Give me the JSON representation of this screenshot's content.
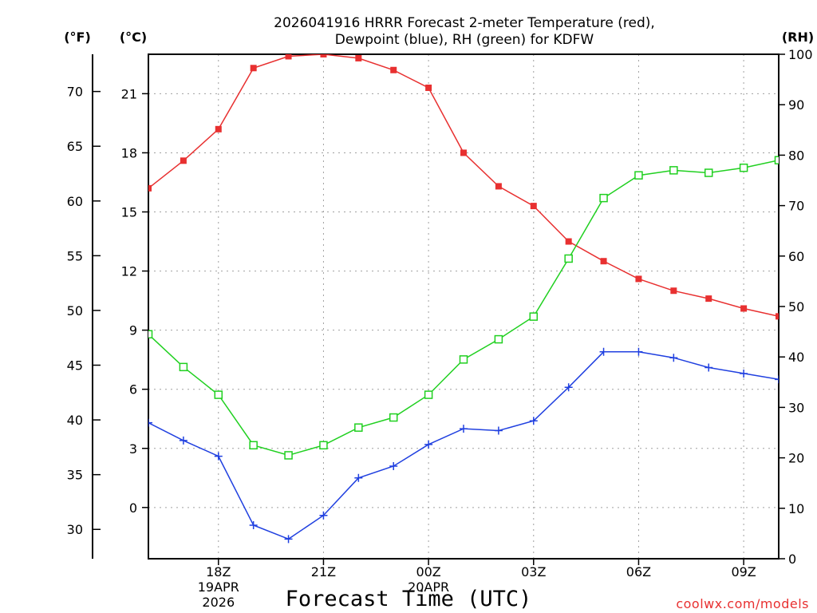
{
  "chart_data": {
    "type": "line",
    "title_line1": "2026041916 HRRR Forecast 2-meter Temperature (red),",
    "title_line2": "Dewpoint (blue), RH (green) for KDFW",
    "xlabel": "Forecast Time (UTC)",
    "credit": "coolwx.com/models",
    "units": {
      "fahrenheit": "(°F)",
      "celsius": "(°C)",
      "rh": "(RH)"
    },
    "x_hours": [
      16,
      17,
      18,
      19,
      20,
      21,
      22,
      23,
      24,
      25,
      26,
      27,
      28,
      29,
      30,
      31,
      32,
      33,
      34
    ],
    "xlim": [
      16,
      34
    ],
    "x_ticks": [
      {
        "hour": 18,
        "label": "18Z",
        "sub1": "19APR",
        "sub2": "2026"
      },
      {
        "hour": 21,
        "label": "21Z",
        "sub1": "",
        "sub2": ""
      },
      {
        "hour": 24,
        "label": "00Z",
        "sub1": "20APR",
        "sub2": ""
      },
      {
        "hour": 27,
        "label": "03Z",
        "sub1": "",
        "sub2": ""
      },
      {
        "hour": 30,
        "label": "06Z",
        "sub1": "",
        "sub2": ""
      },
      {
        "hour": 33,
        "label": "09Z",
        "sub1": "",
        "sub2": ""
      }
    ],
    "celsius_axis": {
      "ylim": [
        -2.6,
        23.0
      ],
      "ticks": [
        0,
        3,
        6,
        9,
        12,
        15,
        18,
        21
      ]
    },
    "fahrenheit_axis": {
      "ticks": [
        30,
        35,
        40,
        45,
        50,
        55,
        60,
        65,
        70
      ]
    },
    "rh_axis": {
      "ylim": [
        0,
        100
      ],
      "ticks": [
        0,
        10,
        20,
        30,
        40,
        50,
        60,
        70,
        80,
        90,
        100
      ]
    },
    "series": [
      {
        "name": "Temperature",
        "axis": "celsius",
        "color": "#e83030",
        "marker": "filled-square",
        "values": [
          16.2,
          17.6,
          19.2,
          22.3,
          22.9,
          23.0,
          22.8,
          22.2,
          21.3,
          18.0,
          16.3,
          15.3,
          13.5,
          12.5,
          11.6,
          11.0,
          10.6,
          10.1,
          9.7
        ]
      },
      {
        "name": "Dewpoint",
        "axis": "celsius",
        "color": "#2040e0",
        "marker": "plus",
        "values": [
          4.3,
          3.4,
          2.6,
          -0.9,
          -1.6,
          -0.4,
          1.5,
          2.1,
          3.2,
          4.0,
          3.9,
          4.4,
          6.1,
          7.9,
          7.9,
          7.6,
          7.1,
          6.8,
          6.5
        ]
      },
      {
        "name": "RH",
        "axis": "rh",
        "color": "#20d020",
        "marker": "open-square",
        "values": [
          44.5,
          38.0,
          32.5,
          22.5,
          20.5,
          22.5,
          26.0,
          28.0,
          32.5,
          39.5,
          43.5,
          48.0,
          59.5,
          71.5,
          76.0,
          77.0,
          76.5,
          77.5,
          79.0
        ]
      }
    ]
  }
}
